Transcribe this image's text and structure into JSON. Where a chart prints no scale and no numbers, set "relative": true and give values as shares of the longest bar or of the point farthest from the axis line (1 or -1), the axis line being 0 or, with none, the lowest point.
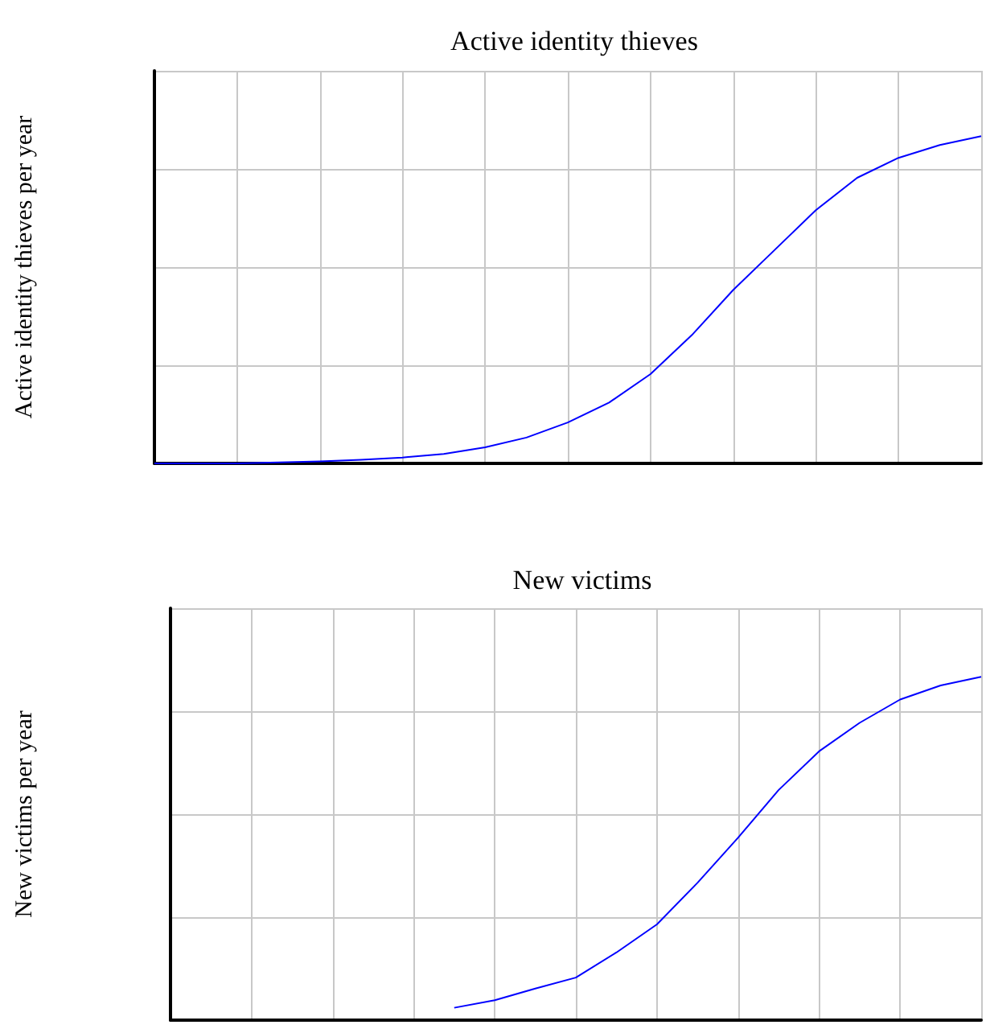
{
  "chart_data": [
    {
      "type": "line",
      "title": "Active identity thieves",
      "ylabel": "Active identity thieves per year",
      "relative": true,
      "grid": true,
      "marker": "none",
      "categories": [
        null,
        null,
        null,
        null,
        null,
        null,
        null,
        null,
        null,
        null,
        null,
        null,
        null,
        null,
        null,
        null,
        null,
        null,
        null,
        null,
        null
      ],
      "series": [
        {
          "color": "#0000ff",
          "values": [
            0,
            0,
            0,
            0.003,
            0.006,
            0.011,
            0.018,
            0.029,
            0.049,
            0.079,
            0.125,
            0.186,
            0.273,
            0.392,
            0.53,
            0.652,
            0.774,
            0.873,
            0.934,
            0.973,
            1
          ]
        }
      ]
    },
    {
      "type": "line",
      "title": "New victims",
      "ylabel": "New victims per year",
      "relative": true,
      "grid": true,
      "marker": "none",
      "categories": [
        null,
        null,
        null,
        null,
        null,
        null,
        null,
        null,
        null,
        null,
        null,
        null,
        null,
        null,
        null,
        null,
        null,
        null,
        null,
        null,
        null
      ],
      "series": [
        {
          "color": "#0000ff",
          "values": [
            null,
            null,
            null,
            null,
            null,
            null,
            null,
            0.036,
            0.058,
            0.092,
            0.124,
            0.197,
            0.279,
            0.4,
            0.531,
            0.67,
            0.783,
            0.866,
            0.934,
            0.975,
            1
          ]
        }
      ]
    }
  ]
}
